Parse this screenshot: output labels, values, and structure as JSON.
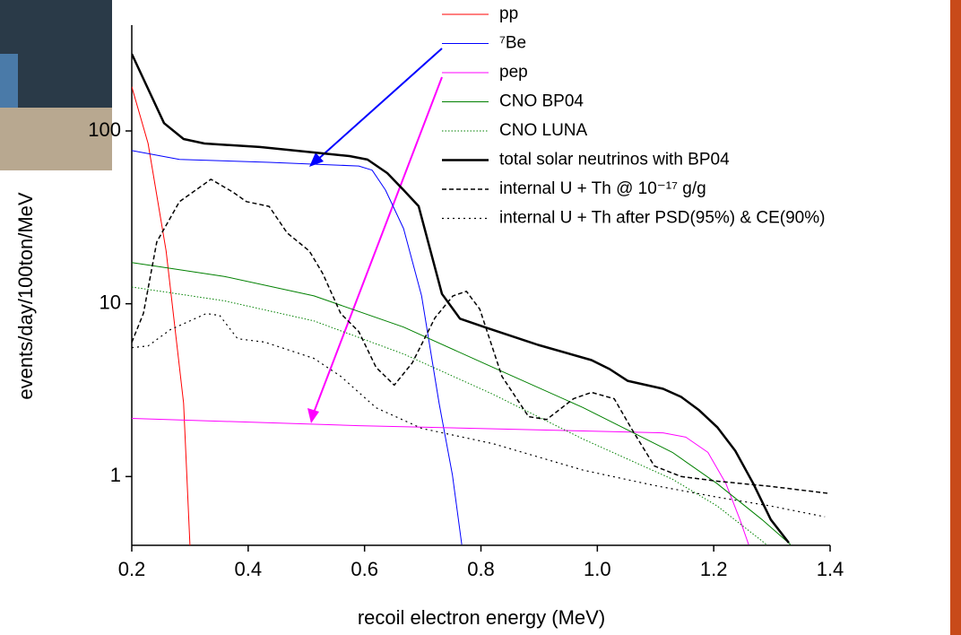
{
  "chart_data": {
    "type": "line",
    "xlabel": "recoil electron energy (MeV)",
    "ylabel": "events/day/100ton/MeV",
    "xlim": [
      0.2,
      1.4
    ],
    "ylim": [
      0.4,
      400
    ],
    "yscale": "log",
    "xticks": [
      0.2,
      0.4,
      0.6,
      0.8,
      1.0,
      1.2,
      1.4
    ],
    "yticks": [
      1,
      10,
      100
    ],
    "legend": "top-right",
    "series": [
      {
        "name": "pp",
        "color": "#ff0000",
        "dash": "solid",
        "line_width": 1,
        "x": [
          0.2,
          0.228,
          0.259,
          0.289,
          0.3
        ],
        "values": [
          180,
          84.6,
          20.2,
          2.66,
          0.4
        ]
      },
      {
        "name": "⁷Be",
        "color": "#0000ff",
        "dash": "solid",
        "line_width": 1,
        "x": [
          0.2,
          0.282,
          0.436,
          0.59,
          0.613,
          0.636,
          0.667,
          0.698,
          0.728,
          0.751,
          0.767
        ],
        "values": [
          77,
          68.4,
          65.8,
          62.7,
          59.3,
          45.5,
          27.2,
          11.1,
          2.66,
          1.02,
          0.404
        ]
      },
      {
        "name": "pep",
        "color": "#ff00ff",
        "dash": "solid",
        "line_width": 1,
        "x": [
          0.2,
          0.59,
          1.113,
          1.152,
          1.19,
          1.221,
          1.245,
          1.26
        ],
        "values": [
          2.17,
          1.97,
          1.79,
          1.69,
          1.38,
          0.909,
          0.564,
          0.404
        ]
      },
      {
        "name": "CNO BP04",
        "color": "#008000",
        "dash": "solid",
        "line_width": 1,
        "x": [
          0.2,
          0.359,
          0.513,
          0.667,
          0.821,
          0.975,
          1.129,
          1.206,
          1.283,
          1.332
        ],
        "values": [
          17.3,
          14.4,
          11.1,
          7.33,
          4.28,
          2.51,
          1.38,
          0.909,
          0.564,
          0.404
        ]
      },
      {
        "name": "CNO LUNA",
        "color": "#008000",
        "dash": "dotted",
        "line_width": 1,
        "x": [
          0.2,
          0.359,
          0.513,
          0.667,
          0.821,
          0.975,
          1.129,
          1.206,
          1.291
        ],
        "values": [
          12.5,
          10.4,
          7.96,
          5.12,
          2.99,
          1.65,
          0.965,
          0.675,
          0.404
        ]
      },
      {
        "name": "total solar neutrinos with BP04",
        "color": "#000000",
        "dash": "solid",
        "line_width": 2.5,
        "x": [
          0.2,
          0.2555,
          0.289,
          0.325,
          0.42,
          0.513,
          0.574,
          0.605,
          0.639,
          0.667,
          0.693,
          0.733,
          0.764,
          0.806,
          0.898,
          0.99,
          1.021,
          1.052,
          1.113,
          1.144,
          1.175,
          1.206,
          1.237,
          1.268,
          1.298,
          1.329
        ],
        "values": [
          279,
          111,
          89.8,
          84.6,
          80.7,
          75.1,
          71.6,
          68.3,
          57,
          45.5,
          36.7,
          11.4,
          8.2,
          7.33,
          5.78,
          4.72,
          4.19,
          3.58,
          3.22,
          2.89,
          2.42,
          1.93,
          1.41,
          0.91,
          0.564,
          0.414
        ]
      },
      {
        "name": "internal U + Th @ 10⁻¹⁷ g/g",
        "color": "#000000",
        "dash": "dashed",
        "line_width": 1.5,
        "x": [
          0.2,
          0.22,
          0.243,
          0.282,
          0.336,
          0.374,
          0.397,
          0.436,
          0.467,
          0.505,
          0.528,
          0.559,
          0.59,
          0.62,
          0.651,
          0.682,
          0.721,
          0.752,
          0.775,
          0.798,
          0.836,
          0.882,
          0.913,
          0.959,
          0.99,
          1.029,
          1.06,
          1.098,
          1.144,
          1.206,
          1.298,
          1.4
        ],
        "values": [
          5.98,
          8.8,
          22.8,
          39.0,
          52.5,
          44.2,
          39,
          36.6,
          25.7,
          20.2,
          15.0,
          8.77,
          6.9,
          4.28,
          3.38,
          4.55,
          8.29,
          11.1,
          11.8,
          9.3,
          3.8,
          2.22,
          2.14,
          2.82,
          3.07,
          2.82,
          1.86,
          1.15,
          1.0,
          0.94,
          0.877,
          0.797
        ]
      },
      {
        "name": "internal U + Th after PSD(95%) & CE(90%)",
        "color": "#000000",
        "dash": "sparse",
        "line_width": 1.2,
        "x": [
          0.2,
          0.228,
          0.266,
          0.328,
          0.351,
          0.382,
          0.428,
          0.513,
          0.559,
          0.62,
          0.698,
          0.821,
          0.975,
          1.098,
          1.206,
          1.298,
          1.391
        ],
        "values": [
          5.57,
          5.7,
          7.07,
          8.77,
          8.56,
          6.27,
          6.0,
          4.83,
          3.8,
          2.5,
          1.9,
          1.55,
          1.09,
          0.888,
          0.76,
          0.675,
          0.585
        ]
      }
    ]
  }
}
